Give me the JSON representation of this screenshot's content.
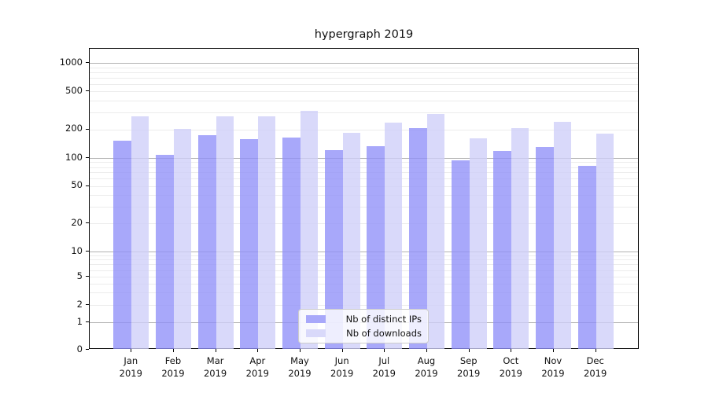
{
  "title": "hypergraph 2019",
  "chart_data": {
    "type": "bar",
    "title": "hypergraph 2019",
    "yscale": "symlog",
    "grid": true,
    "legend_position": "lower center inside plot",
    "categories": [
      "Jan 2019",
      "Feb 2019",
      "Mar 2019",
      "Apr 2019",
      "May 2019",
      "Jun 2019",
      "Jul 2019",
      "Aug 2019",
      "Sep 2019",
      "Oct 2019",
      "Nov 2019",
      "Dec 2019"
    ],
    "month_line1": [
      "Jan",
      "Feb",
      "Mar",
      "Apr",
      "May",
      "Jun",
      "Jul",
      "Aug",
      "Sep",
      "Oct",
      "Nov",
      "Dec"
    ],
    "month_line2": "2019",
    "yticks": [
      0,
      1,
      2,
      5,
      10,
      20,
      50,
      100,
      200,
      500,
      1000
    ],
    "minor_gridlines": [
      2,
      3,
      4,
      5,
      6,
      7,
      8,
      9,
      20,
      30,
      40,
      50,
      60,
      70,
      80,
      90,
      200,
      300,
      400,
      500,
      600,
      700,
      800,
      900
    ],
    "major_gridlines": [
      1,
      10,
      100,
      1000
    ],
    "ylim": [
      0,
      1400
    ],
    "series": [
      {
        "name": "Nb of distinct IPs",
        "color": "#a8a8fa",
        "base_color": "#8f8ff8",
        "values": [
          152,
          108,
          175,
          158,
          164,
          121,
          133,
          207,
          95,
          119,
          131,
          82
        ]
      },
      {
        "name": "Nb of downloads",
        "color": "#d9d9fa",
        "base_color": "#cecef9",
        "values": [
          275,
          202,
          275,
          275,
          315,
          185,
          236,
          290,
          162,
          206,
          241,
          179
        ]
      }
    ]
  }
}
